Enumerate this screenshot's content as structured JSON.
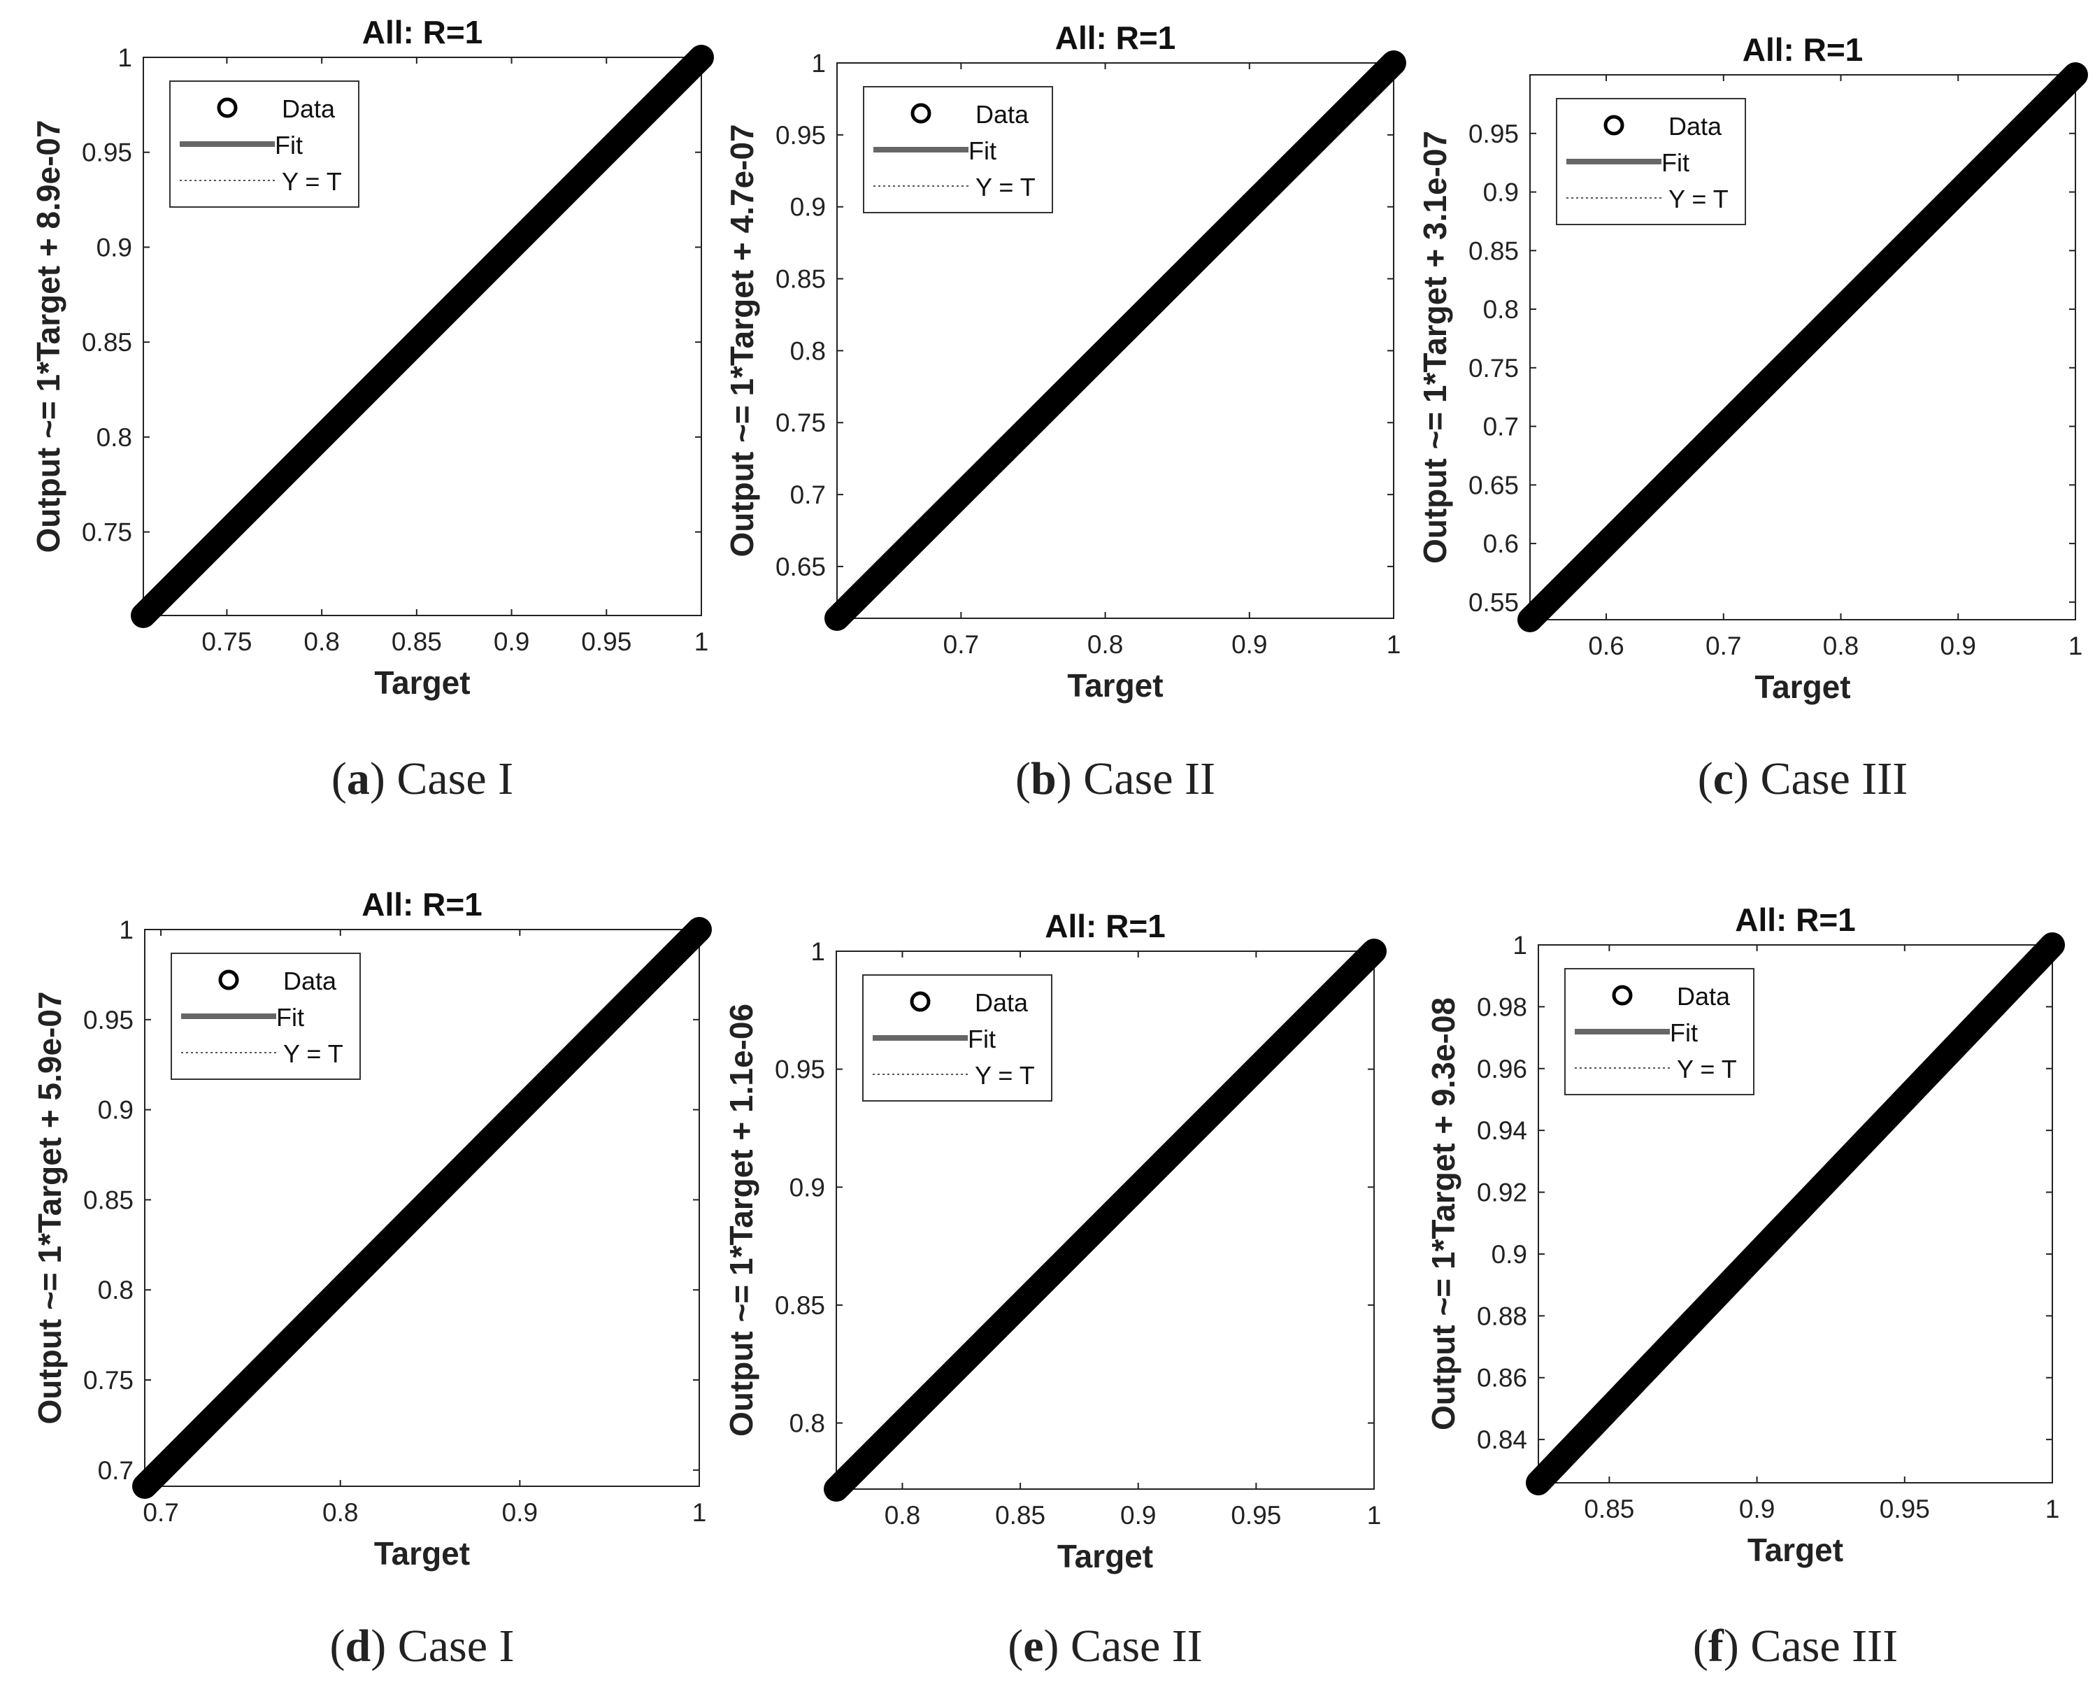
{
  "figure": {
    "panel_label_open": "(",
    "panel_label_close": ")"
  },
  "colors": {
    "data": "#000000",
    "fit": "#666666",
    "identity": "#555555",
    "axes": "#222222"
  },
  "chart_data": [
    {
      "type": "scatter",
      "panel": "a",
      "caption": "Case I",
      "title": "All: R=1",
      "xlabel": "Target",
      "ylabel": "Output ~= 1*Target + 8.9e-07",
      "xlim": [
        0.706,
        1.0
      ],
      "ylim": [
        0.706,
        1.0
      ],
      "xticks": [
        0.75,
        0.8,
        0.85,
        0.9,
        0.95,
        1
      ],
      "xtick_labels": [
        "0.75",
        "0.8",
        "0.85",
        "0.9",
        "0.95",
        "1"
      ],
      "yticks": [
        0.75,
        0.8,
        0.85,
        0.9,
        0.95,
        1
      ],
      "ytick_labels": [
        "0.75",
        "0.8",
        "0.85",
        "0.9",
        "0.95",
        "1"
      ],
      "data_range": [
        0.706,
        1.0
      ],
      "fit": {
        "slope": 1,
        "intercept": 8.9e-07
      },
      "legend": [
        "Data",
        "Fit",
        "Y = T"
      ],
      "legend_position": "top-left",
      "grid": false
    },
    {
      "type": "scatter",
      "panel": "b",
      "caption": "Case II",
      "title": "All: R=1",
      "xlabel": "Target",
      "ylabel": "Output ~= 1*Target + 4.7e-07",
      "xlim": [
        0.614,
        1.0
      ],
      "ylim": [
        0.614,
        1.0
      ],
      "xticks": [
        0.7,
        0.8,
        0.9,
        1
      ],
      "xtick_labels": [
        "0.7",
        "0.8",
        "0.9",
        "1"
      ],
      "yticks": [
        0.65,
        0.7,
        0.75,
        0.8,
        0.85,
        0.9,
        0.95,
        1
      ],
      "ytick_labels": [
        "0.65",
        "0.7",
        "0.75",
        "0.8",
        "0.85",
        "0.9",
        "0.95",
        "1"
      ],
      "data_range": [
        0.614,
        1.0
      ],
      "fit": {
        "slope": 1,
        "intercept": 4.7e-07
      },
      "legend": [
        "Data",
        "Fit",
        "Y = T"
      ],
      "legend_position": "top-left",
      "grid": false
    },
    {
      "type": "scatter",
      "panel": "c",
      "caption": "Case III",
      "title": "All: R=1",
      "xlabel": "Target",
      "ylabel": "Output ~= 1*Target + 3.1e-07",
      "xlim": [
        0.535,
        1.0
      ],
      "ylim": [
        0.535,
        1.0
      ],
      "xticks": [
        0.6,
        0.7,
        0.8,
        0.9,
        1
      ],
      "xtick_labels": [
        "0.6",
        "0.7",
        "0.8",
        "0.9",
        "1"
      ],
      "yticks": [
        0.55,
        0.6,
        0.65,
        0.7,
        0.75,
        0.8,
        0.85,
        0.9,
        0.95
      ],
      "ytick_labels": [
        "0.55",
        "0.6",
        "0.65",
        "0.7",
        "0.75",
        "0.8",
        "0.85",
        "0.9",
        "0.95"
      ],
      "data_range": [
        0.535,
        1.0
      ],
      "fit": {
        "slope": 1,
        "intercept": 3.1e-07
      },
      "legend": [
        "Data",
        "Fit",
        "Y = T"
      ],
      "legend_position": "top-left",
      "grid": false
    },
    {
      "type": "scatter",
      "panel": "d",
      "caption": "Case I",
      "title": "All: R=1",
      "xlabel": "Target",
      "ylabel": "Output ~= 1*Target + 5.9e-07",
      "xlim": [
        0.691,
        1.0
      ],
      "ylim": [
        0.691,
        1.0
      ],
      "xticks": [
        0.7,
        0.8,
        0.9,
        1
      ],
      "xtick_labels": [
        "0.7",
        "0.8",
        "0.9",
        "1"
      ],
      "yticks": [
        0.7,
        0.75,
        0.8,
        0.85,
        0.9,
        0.95,
        1
      ],
      "ytick_labels": [
        "0.7",
        "0.75",
        "0.8",
        "0.85",
        "0.9",
        "0.95",
        "1"
      ],
      "data_range": [
        0.691,
        1.0
      ],
      "fit": {
        "slope": 1,
        "intercept": 5.9e-07
      },
      "legend": [
        "Data",
        "Fit",
        "Y = T"
      ],
      "legend_position": "top-left",
      "grid": false
    },
    {
      "type": "scatter",
      "panel": "e",
      "caption": "Case II",
      "title": "All: R=1",
      "xlabel": "Target",
      "ylabel": "Output ~= 1*Target + 1.1e-06",
      "xlim": [
        0.772,
        1.0
      ],
      "ylim": [
        0.772,
        1.0
      ],
      "xticks": [
        0.8,
        0.85,
        0.9,
        0.95,
        1
      ],
      "xtick_labels": [
        "0.8",
        "0.85",
        "0.9",
        "0.95",
        "1"
      ],
      "yticks": [
        0.8,
        0.85,
        0.9,
        0.95,
        1
      ],
      "ytick_labels": [
        "0.8",
        "0.85",
        "0.9",
        "0.95",
        "1"
      ],
      "data_range": [
        0.772,
        1.0
      ],
      "fit": {
        "slope": 1,
        "intercept": 1.1e-06
      },
      "legend": [
        "Data",
        "Fit",
        "Y = T"
      ],
      "legend_position": "top-left",
      "grid": false
    },
    {
      "type": "scatter",
      "panel": "f",
      "caption": "Case III",
      "title": "All: R=1",
      "xlabel": "Target",
      "ylabel": "Output ~= 1*Target + 9.3e-08",
      "xlim": [
        0.826,
        1.0
      ],
      "ylim": [
        0.826,
        1.0
      ],
      "xticks": [
        0.85,
        0.9,
        0.95,
        1
      ],
      "xtick_labels": [
        "0.85",
        "0.9",
        "0.95",
        "1"
      ],
      "yticks": [
        0.84,
        0.86,
        0.88,
        0.9,
        0.92,
        0.94,
        0.96,
        0.98,
        1
      ],
      "ytick_labels": [
        "0.84",
        "0.86",
        "0.88",
        "0.9",
        "0.92",
        "0.94",
        "0.96",
        "0.98",
        "1"
      ],
      "data_range": [
        0.826,
        1.0
      ],
      "fit": {
        "slope": 1,
        "intercept": 9.3e-08
      },
      "legend": [
        "Data",
        "Fit",
        "Y = T"
      ],
      "legend_position": "top-left",
      "grid": false
    }
  ]
}
